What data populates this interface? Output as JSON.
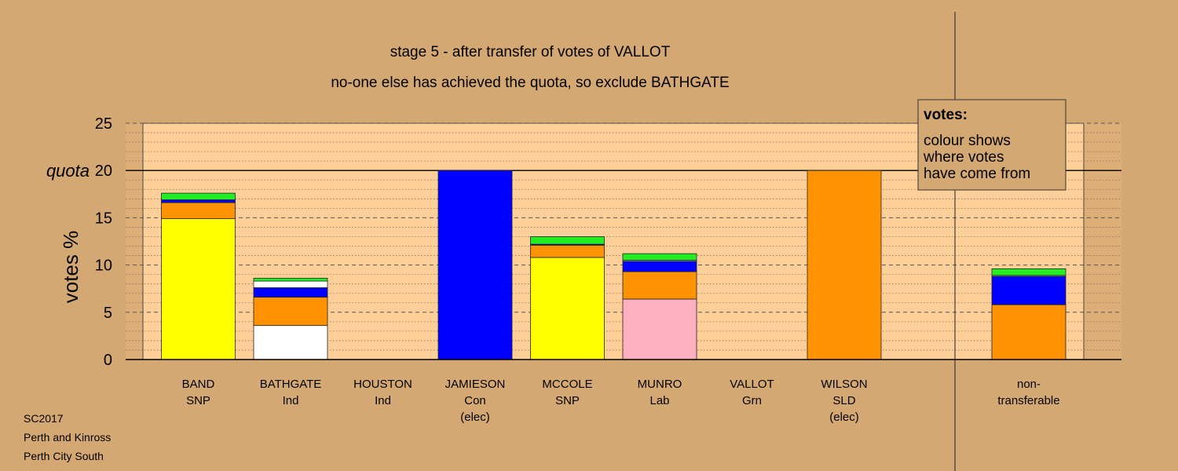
{
  "chart_data": {
    "type": "bar",
    "title": "stage 5 - after transfer of votes of VALLOT",
    "subtitle": "no-one else has achieved the quota, so exclude BATHGATE",
    "ylabel": "votes %",
    "ylim": [
      0,
      25
    ],
    "yticks": [
      0,
      5,
      10,
      15,
      20,
      25
    ],
    "quota": 20,
    "quota_label": "quota",
    "legend": {
      "title": "votes:",
      "lines": [
        "colour shows",
        "where votes",
        "have come from"
      ]
    },
    "categories": [
      {
        "name": "BAND",
        "party": "SNP",
        "note": ""
      },
      {
        "name": "BATHGATE",
        "party": "Ind",
        "note": ""
      },
      {
        "name": "HOUSTON",
        "party": "Ind",
        "note": ""
      },
      {
        "name": "JAMIESON",
        "party": "Con",
        "note": "(elec)"
      },
      {
        "name": "MCCOLE",
        "party": "SNP",
        "note": ""
      },
      {
        "name": "MUNRO",
        "party": "Lab",
        "note": ""
      },
      {
        "name": "VALLOT",
        "party": "Grn",
        "note": ""
      },
      {
        "name": "WILSON",
        "party": "SLD",
        "note": "(elec)"
      }
    ],
    "nontransferable_label": [
      "non-",
      "transferable"
    ],
    "bars": [
      [
        {
          "color": "#ffff00",
          "value": 14.9
        },
        {
          "color": "#ff9200",
          "value": 1.7
        },
        {
          "color": "#0000ff",
          "value": 0.3
        },
        {
          "color": "#22ee22",
          "value": 0.7
        }
      ],
      [
        {
          "color": "#ffffff",
          "value": 3.6
        },
        {
          "color": "#ff9200",
          "value": 3.0
        },
        {
          "color": "#0000ff",
          "value": 1.0
        },
        {
          "color": "#ffffff",
          "value": 0.7
        },
        {
          "color": "#22ee22",
          "value": 0.3
        }
      ],
      [],
      [
        {
          "color": "#0000ff",
          "value": 20.0
        }
      ],
      [
        {
          "color": "#ffff00",
          "value": 10.8
        },
        {
          "color": "#ff9200",
          "value": 1.3
        },
        {
          "color": "#0000ff",
          "value": 0.1
        },
        {
          "color": "#22ee22",
          "value": 0.8
        }
      ],
      [
        {
          "color": "#ffb0c0",
          "value": 6.4
        },
        {
          "color": "#ff9200",
          "value": 2.9
        },
        {
          "color": "#0000ff",
          "value": 1.1
        },
        {
          "color": "#ffffff",
          "value": 0.1
        },
        {
          "color": "#22ee22",
          "value": 0.7
        }
      ],
      [],
      [
        {
          "color": "#ff9200",
          "value": 20.0
        }
      ]
    ],
    "nontransferable": [
      {
        "color": "#ff9200",
        "value": 5.8
      },
      {
        "color": "#0000ff",
        "value": 3.0
      },
      {
        "color": "#ffffff",
        "value": 0.1
      },
      {
        "color": "#22ee22",
        "value": 0.7
      }
    ],
    "colors": {
      "background": "#d4a872",
      "plot_area": "#ffcf99",
      "side_area": "#deae78"
    }
  },
  "footer": {
    "line1": "SC2017",
    "line2": "Perth and Kinross",
    "line3": "Perth City South"
  }
}
